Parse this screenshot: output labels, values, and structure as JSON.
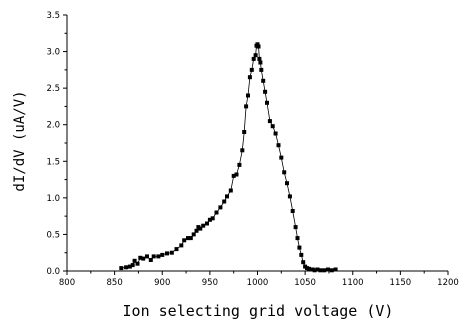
{
  "chart_data": {
    "type": "scatter",
    "title": "",
    "xlabel": "Ion selecting grid voltage (V)",
    "ylabel": "dI/dV (uA/V)",
    "xlim": [
      800,
      1200
    ],
    "ylim": [
      0.0,
      3.5
    ],
    "xticks": [
      "800",
      "850",
      "900",
      "950",
      "1000",
      "1050",
      "1100",
      "1150",
      "1200"
    ],
    "yticks": [
      "0.0",
      "0.5",
      "1.0",
      "1.5",
      "2.0",
      "2.5",
      "3.0",
      "3.5"
    ],
    "grid": false,
    "legend": "none",
    "line_connected": true,
    "marker": "square",
    "color": "#000000",
    "series": [
      {
        "x": [
          857,
          862,
          866,
          869,
          871,
          874,
          877,
          880,
          884,
          888,
          891,
          896,
          900,
          905,
          910,
          915,
          920,
          923,
          927,
          930,
          933,
          936,
          938,
          940,
          943,
          947,
          950,
          953,
          957,
          961,
          965,
          968,
          972,
          975,
          978,
          981,
          984,
          986,
          988,
          990,
          992,
          994,
          996,
          998,
          999,
          1000,
          1001,
          1002,
          1003,
          1004,
          1006,
          1008,
          1010,
          1013,
          1016,
          1019,
          1022,
          1025,
          1028,
          1031,
          1034,
          1037,
          1040,
          1042,
          1044,
          1046,
          1048,
          1050,
          1052,
          1054,
          1056,
          1058,
          1060,
          1063,
          1066,
          1070,
          1074,
          1078,
          1082
        ],
        "y": [
          0.04,
          0.05,
          0.06,
          0.08,
          0.14,
          0.1,
          0.18,
          0.17,
          0.2,
          0.15,
          0.2,
          0.2,
          0.22,
          0.24,
          0.25,
          0.3,
          0.35,
          0.42,
          0.45,
          0.45,
          0.5,
          0.55,
          0.6,
          0.58,
          0.62,
          0.65,
          0.7,
          0.72,
          0.8,
          0.87,
          0.95,
          1.02,
          1.1,
          1.3,
          1.32,
          1.45,
          1.65,
          1.9,
          2.25,
          2.4,
          2.65,
          2.75,
          2.9,
          2.95,
          3.08,
          3.1,
          3.07,
          2.9,
          2.85,
          2.75,
          2.6,
          2.45,
          2.3,
          2.05,
          1.98,
          1.88,
          1.72,
          1.55,
          1.35,
          1.2,
          1.02,
          0.82,
          0.6,
          0.45,
          0.32,
          0.22,
          0.12,
          0.06,
          0.04,
          0.03,
          0.02,
          0.02,
          0.01,
          0.02,
          0.01,
          0.01,
          0.02,
          0.01,
          0.02
        ]
      }
    ]
  }
}
